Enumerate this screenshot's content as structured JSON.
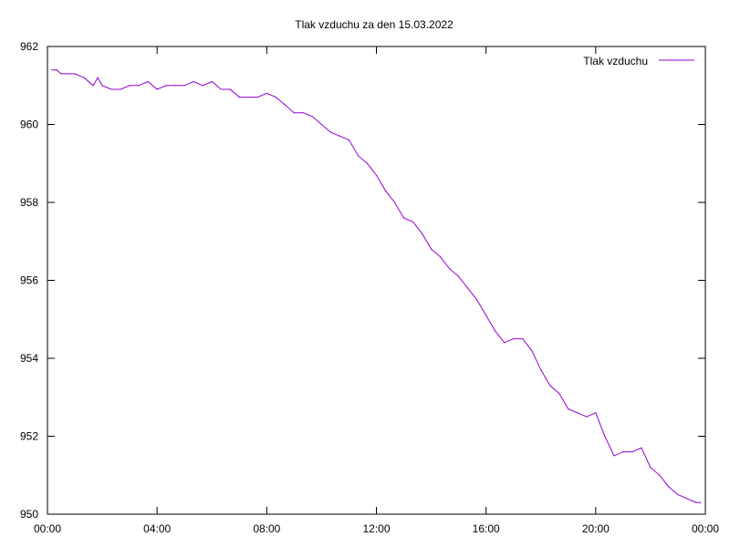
{
  "chart_data": {
    "type": "line",
    "title": "Tlak vzduchu za den 15.03.2022",
    "xlabel": "",
    "ylabel": "",
    "xlim": [
      "00:00",
      "24:00"
    ],
    "ylim": [
      950,
      962
    ],
    "grid": false,
    "legend_position": "top-right",
    "x_ticks": [
      "00:00",
      "04:00",
      "08:00",
      "12:00",
      "16:00",
      "20:00",
      "00:00"
    ],
    "y_ticks": [
      "950",
      "952",
      "954",
      "956",
      "958",
      "960",
      "962"
    ],
    "series": [
      {
        "name": "Tlak vzduchu",
        "color": "#9400d3",
        "x": [
          "00:10",
          "00:20",
          "00:30",
          "00:40",
          "01:00",
          "01:20",
          "01:40",
          "01:50",
          "02:00",
          "02:20",
          "02:40",
          "03:00",
          "03:20",
          "03:40",
          "04:00",
          "04:20",
          "04:40",
          "05:00",
          "05:20",
          "05:40",
          "06:00",
          "06:20",
          "06:40",
          "07:00",
          "07:20",
          "07:40",
          "08:00",
          "08:20",
          "08:40",
          "09:00",
          "09:20",
          "09:40",
          "10:00",
          "10:20",
          "10:40",
          "11:00",
          "11:20",
          "11:40",
          "12:00",
          "12:20",
          "12:40",
          "13:00",
          "13:20",
          "13:40",
          "14:00",
          "14:20",
          "14:40",
          "15:00",
          "15:20",
          "15:40",
          "16:00",
          "16:20",
          "16:40",
          "17:00",
          "17:20",
          "17:40",
          "18:00",
          "18:20",
          "18:40",
          "19:00",
          "19:20",
          "19:40",
          "20:00",
          "20:20",
          "20:40",
          "21:00",
          "21:20",
          "21:40",
          "22:00",
          "22:20",
          "22:40",
          "23:00",
          "23:20",
          "23:40",
          "23:50"
        ],
        "values": [
          961.4,
          961.4,
          961.3,
          961.3,
          961.3,
          961.2,
          961.0,
          961.2,
          961.0,
          960.9,
          960.9,
          961.0,
          961.0,
          961.1,
          960.9,
          961.0,
          961.0,
          961.0,
          961.1,
          961.0,
          961.1,
          960.9,
          960.9,
          960.7,
          960.7,
          960.7,
          960.8,
          960.7,
          960.5,
          960.3,
          960.3,
          960.2,
          960.0,
          959.8,
          959.7,
          959.6,
          959.2,
          959.0,
          958.7,
          958.3,
          958.0,
          957.6,
          957.5,
          957.2,
          956.8,
          956.6,
          956.3,
          956.1,
          955.8,
          955.5,
          955.1,
          954.7,
          954.4,
          954.5,
          954.5,
          954.2,
          953.7,
          953.3,
          953.1,
          952.7,
          952.6,
          952.5,
          952.6,
          952.0,
          951.5,
          951.6,
          951.6,
          951.7,
          951.2,
          951.0,
          950.7,
          950.5,
          950.4,
          950.3,
          950.3
        ]
      }
    ]
  }
}
